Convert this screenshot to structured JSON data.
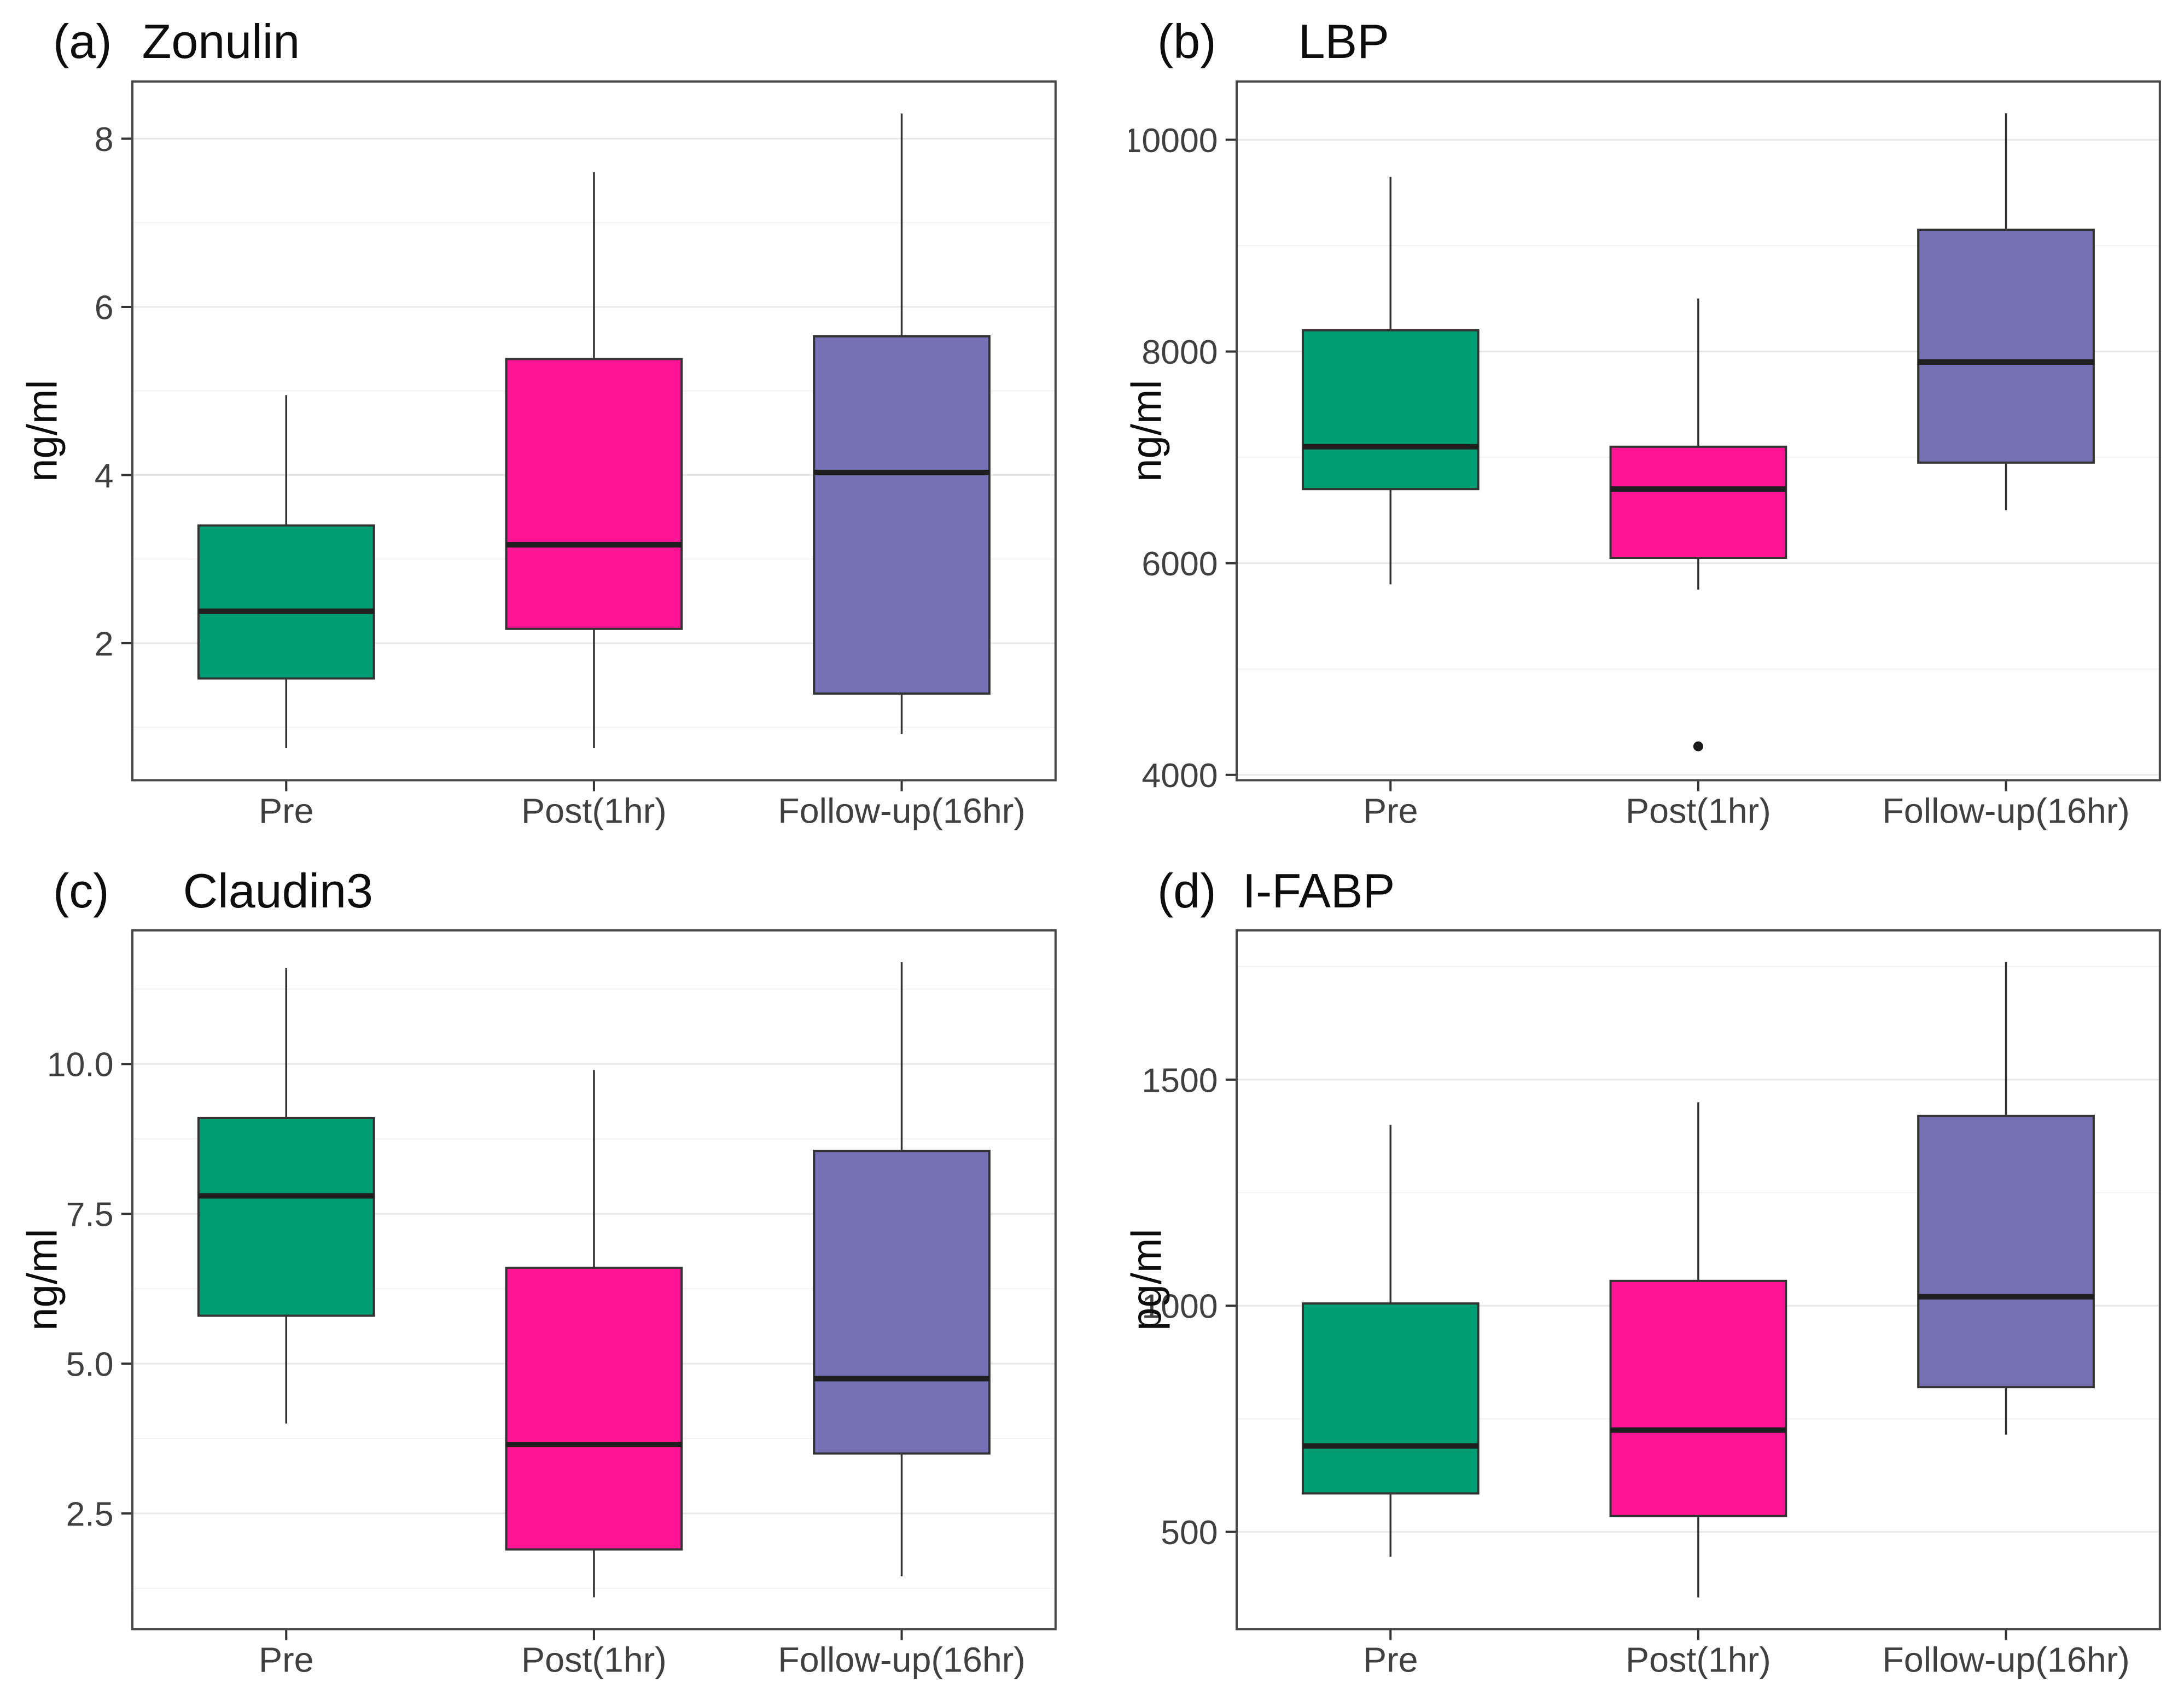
{
  "colors": {
    "pre": "#009E73",
    "post": "#FF1493",
    "followup": "#7570B3",
    "box_stroke": "#333333",
    "median": "#1F1F1F",
    "outlier": "#1A1A1A",
    "grid_major": "#E8E8E8",
    "grid_minor": "#F3F3F3",
    "panel_border": "#474747",
    "axis": "#333333",
    "tick_text": "#404040",
    "title_text": "#0D0D0D"
  },
  "chart_data": [
    {
      "type": "boxplot",
      "tag": "(a)",
      "title": "Zonulin",
      "ylabel": "ng/ml",
      "categories": [
        "Pre",
        "Post(1hr)",
        "Follow-up(16hr)"
      ],
      "ytick_values": [
        2,
        4,
        6,
        8
      ],
      "ytick_labels": [
        "2",
        "4",
        "6",
        "8"
      ],
      "ylim": [
        0.37,
        8.68
      ],
      "grid": true,
      "legend": "none",
      "series": [
        {
          "name": "Pre",
          "color": "pre",
          "whisker_low": 0.75,
          "q1": 1.58,
          "median": 2.38,
          "q3": 3.4,
          "whisker_high": 4.95,
          "outliers": []
        },
        {
          "name": "Post(1hr)",
          "color": "post",
          "whisker_low": 0.75,
          "q1": 2.17,
          "median": 3.17,
          "q3": 5.38,
          "whisker_high": 7.6,
          "outliers": []
        },
        {
          "name": "Follow-up(16hr)",
          "color": "followup",
          "whisker_low": 0.92,
          "q1": 1.4,
          "median": 4.03,
          "q3": 5.65,
          "whisker_high": 8.3,
          "outliers": []
        }
      ]
    },
    {
      "type": "boxplot",
      "tag": "(b)",
      "title": "LBP",
      "ylabel": "ng/ml",
      "categories": [
        "Pre",
        "Post(1hr)",
        "Follow-up(16hr)"
      ],
      "ytick_values": [
        4000,
        6000,
        8000,
        10000
      ],
      "ytick_labels": [
        "4000",
        "6000",
        "8000",
        "10000"
      ],
      "ylim": [
        3950,
        10550
      ],
      "grid": true,
      "legend": "none",
      "series": [
        {
          "name": "Pre",
          "color": "pre",
          "whisker_low": 5800,
          "q1": 6700,
          "median": 7100,
          "q3": 8200,
          "whisker_high": 9650,
          "outliers": []
        },
        {
          "name": "Post(1hr)",
          "color": "post",
          "whisker_low": 5750,
          "q1": 6050,
          "median": 6700,
          "q3": 7100,
          "whisker_high": 8500,
          "outliers": [
            4270
          ]
        },
        {
          "name": "Follow-up(16hr)",
          "color": "followup",
          "whisker_low": 6500,
          "q1": 6950,
          "median": 7900,
          "q3": 9150,
          "whisker_high": 10250,
          "outliers": []
        }
      ]
    },
    {
      "type": "boxplot",
      "tag": "(c)",
      "title": "Claudin3",
      "ylabel": "ng/ml",
      "categories": [
        "Pre",
        "Post(1hr)",
        "Follow-up(16hr)"
      ],
      "ytick_values": [
        2.5,
        5.0,
        7.5,
        10.0
      ],
      "ytick_labels": [
        "2.5",
        "5.0",
        "7.5",
        "10.0"
      ],
      "ylim": [
        0.57,
        12.23
      ],
      "grid": true,
      "legend": "none",
      "series": [
        {
          "name": "Pre",
          "color": "pre",
          "whisker_low": 4.0,
          "q1": 5.8,
          "median": 7.8,
          "q3": 9.1,
          "whisker_high": 11.6,
          "outliers": []
        },
        {
          "name": "Post(1hr)",
          "color": "post",
          "whisker_low": 1.1,
          "q1": 1.9,
          "median": 3.65,
          "q3": 6.6,
          "whisker_high": 9.9,
          "outliers": []
        },
        {
          "name": "Follow-up(16hr)",
          "color": "followup",
          "whisker_low": 1.45,
          "q1": 3.5,
          "median": 4.75,
          "q3": 8.55,
          "whisker_high": 11.7,
          "outliers": []
        }
      ]
    },
    {
      "type": "boxplot",
      "tag": "(d)",
      "title": "I-FABP",
      "ylabel": "pg/ml",
      "categories": [
        "Pre",
        "Post(1hr)",
        "Follow-up(16hr)"
      ],
      "ytick_values": [
        500,
        1000,
        1500
      ],
      "ytick_labels": [
        "500",
        "1000",
        "1500"
      ],
      "ylim": [
        285,
        1830
      ],
      "grid": true,
      "legend": "none",
      "series": [
        {
          "name": "Pre",
          "color": "pre",
          "whisker_low": 445,
          "q1": 585,
          "median": 690,
          "q3": 1005,
          "whisker_high": 1400,
          "outliers": []
        },
        {
          "name": "Post(1hr)",
          "color": "post",
          "whisker_low": 355,
          "q1": 535,
          "median": 725,
          "q3": 1055,
          "whisker_high": 1450,
          "outliers": []
        },
        {
          "name": "Follow-up(16hr)",
          "color": "followup",
          "whisker_low": 715,
          "q1": 820,
          "median": 1020,
          "q3": 1420,
          "whisker_high": 1760,
          "outliers": []
        }
      ]
    }
  ]
}
